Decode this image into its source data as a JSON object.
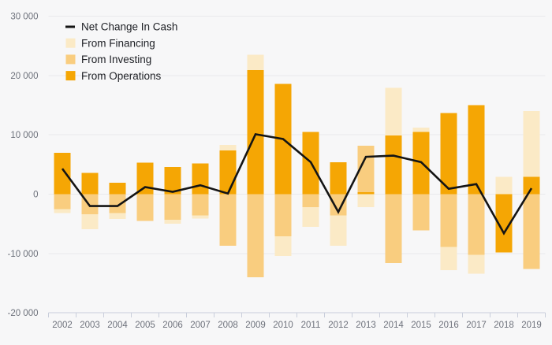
{
  "chart_data": {
    "type": "bar",
    "subtype": "stacked-bar-with-net-line",
    "title": "",
    "xlabel": "",
    "ylabel": "",
    "categories": [
      "2002",
      "2003",
      "2004",
      "2005",
      "2006",
      "2007",
      "2008",
      "2009",
      "2010",
      "2011",
      "2012",
      "2013",
      "2014",
      "2015",
      "2016",
      "2017",
      "2018",
      "2019"
    ],
    "series": [
      {
        "name": "From Operations",
        "kind": "bar",
        "color": "#F5A604",
        "values": [
          7000,
          3600,
          1900,
          5300,
          4600,
          5200,
          7400,
          20900,
          18600,
          10500,
          5400,
          300,
          9900,
          10500,
          13700,
          15000,
          -9800,
          2900
        ]
      },
      {
        "name": "From Investing",
        "kind": "bar",
        "color": "#F9CD7F",
        "values": [
          -2500,
          -3400,
          -3200,
          -4500,
          -4300,
          -3600,
          -8700,
          -14000,
          -7100,
          -2200,
          -3600,
          7900,
          -11600,
          -6100,
          -8900,
          -10200,
          0,
          -12600
        ]
      },
      {
        "name": "From Financing",
        "kind": "bar",
        "color": "#FBEAC6",
        "values": [
          -700,
          -2500,
          -1000,
          0,
          -700,
          -500,
          900,
          2600,
          -3300,
          -3300,
          -5100,
          -2200,
          8000,
          700,
          -3900,
          -3200,
          2900,
          11100
        ]
      },
      {
        "name": "Net Change In Cash",
        "kind": "line",
        "color": "#141414",
        "values": [
          4300,
          -2000,
          -2000,
          1200,
          400,
          1500,
          100,
          10100,
          9300,
          5400,
          -3000,
          6300,
          6500,
          5400,
          900,
          1700,
          -6600,
          1000
        ]
      }
    ],
    "stack_order": [
      "From Operations",
      "From Investing",
      "From Financing"
    ],
    "legend": [
      {
        "label": "Net Change In Cash",
        "swatch": "line",
        "color": "#141414"
      },
      {
        "label": "From Financing",
        "swatch": "square",
        "color": "#FBEAC6"
      },
      {
        "label": "From Investing",
        "swatch": "square",
        "color": "#F9CD7F"
      },
      {
        "label": "From Operations",
        "swatch": "square",
        "color": "#F5A604"
      }
    ],
    "legend_position": "top-left",
    "grid": true,
    "ylim": [
      -20000,
      30000
    ],
    "y_ticks": [
      {
        "value": 30000,
        "label": "30 000"
      },
      {
        "value": 20000,
        "label": "20 000"
      },
      {
        "value": 10000,
        "label": "10 000"
      },
      {
        "value": 0,
        "label": "0"
      },
      {
        "value": -10000,
        "label": "-10 000"
      },
      {
        "value": -20000,
        "label": "-20 000"
      }
    ]
  },
  "colors": {
    "background": "#F7F7F8",
    "gridline": "#E9E9EB",
    "axis": "#C9CEDB",
    "tick_text": "#6D717B",
    "legend_text": "#202227"
  }
}
